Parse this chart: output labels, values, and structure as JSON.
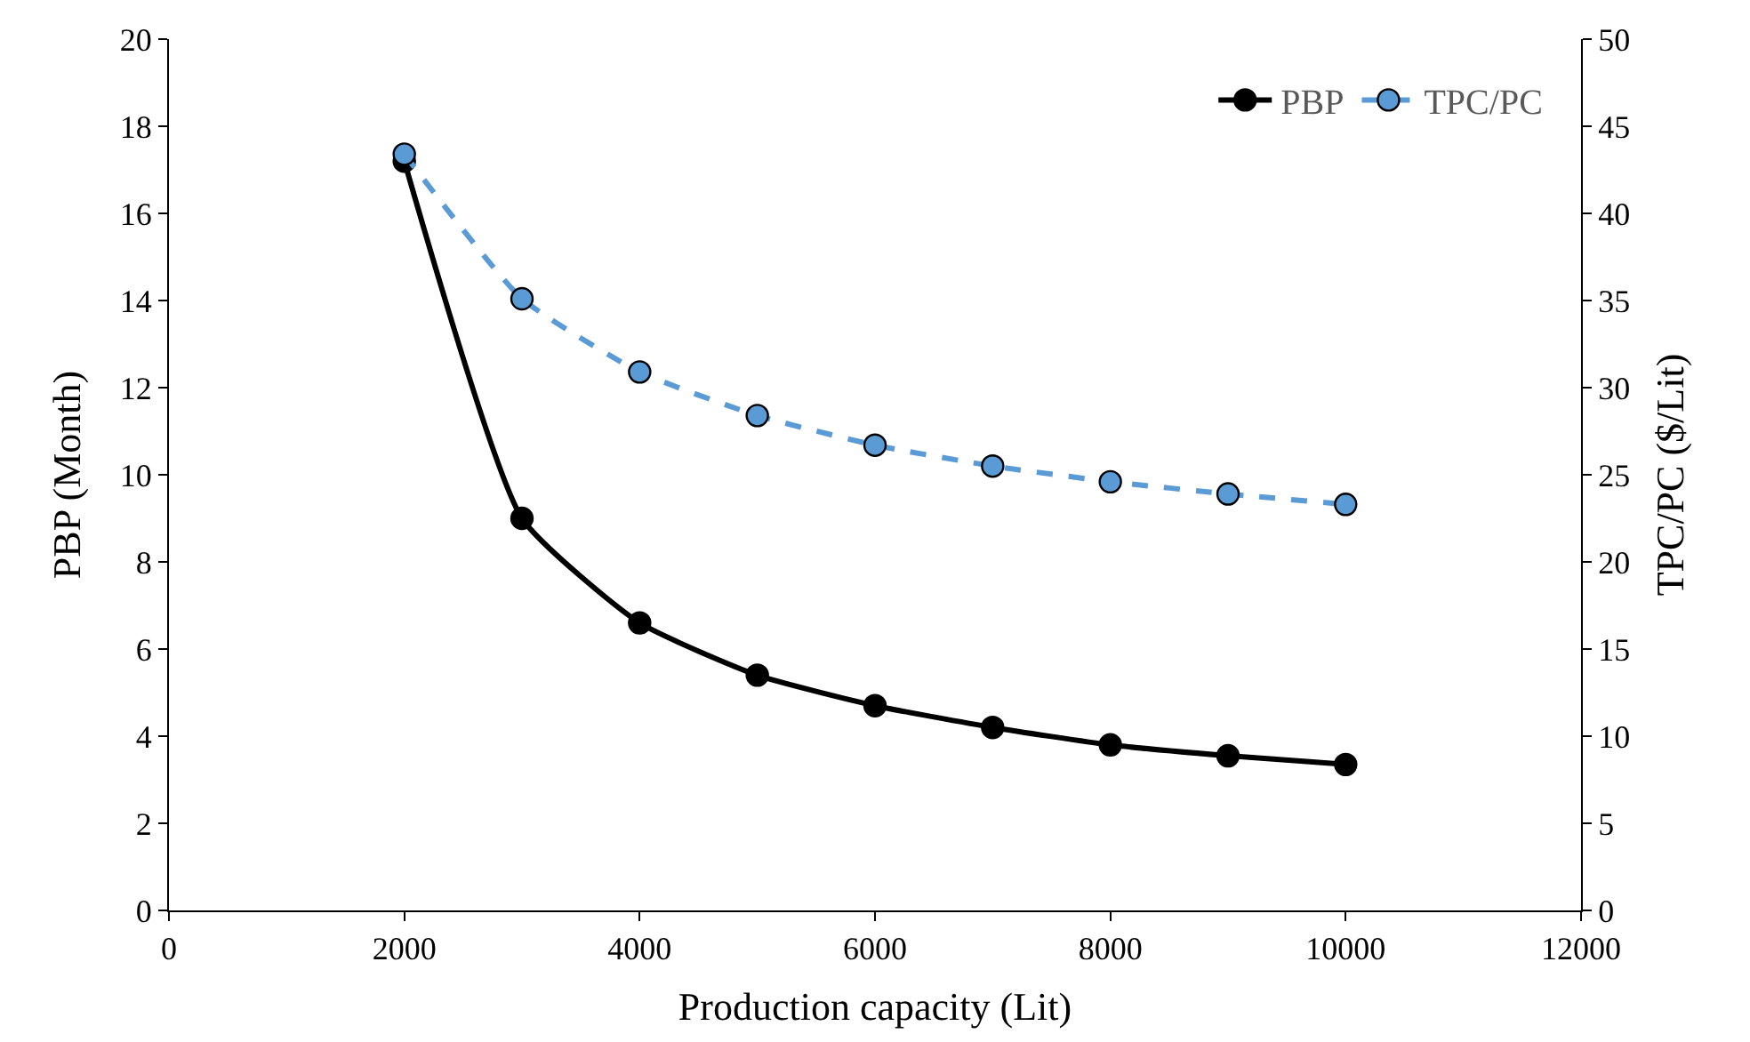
{
  "chart_data": {
    "type": "line",
    "xlabel": "Production capacity (Lit)",
    "ylabel": "PBP (Month)",
    "y2label": "TPC/PC ($/Lit)",
    "x": [
      2000,
      3000,
      4000,
      5000,
      6000,
      7000,
      8000,
      9000,
      10000
    ],
    "series": [
      {
        "name": "PBP",
        "color": "#000000",
        "values": [
          17.2,
          9.0,
          6.6,
          5.4,
          4.7,
          4.2,
          3.8,
          3.55,
          3.35
        ],
        "line_style": "solid"
      },
      {
        "name": "TPC/PC",
        "color": "#5b9bd5",
        "values": [
          43.4,
          35.1,
          30.9,
          28.4,
          26.7,
          25.5,
          24.6,
          23.9,
          23.3
        ],
        "line_style": "dashed",
        "axis": "y2"
      }
    ],
    "xlim": [
      0,
      12000
    ],
    "xticks": [
      0,
      2000,
      4000,
      6000,
      8000,
      10000,
      12000
    ],
    "ylim": [
      0,
      20
    ],
    "yticks": [
      0,
      2,
      4,
      6,
      8,
      10,
      12,
      14,
      16,
      18,
      20
    ],
    "y2lim": [
      0,
      50
    ],
    "y2ticks": [
      0,
      5,
      10,
      15,
      20,
      25,
      30,
      35,
      40,
      45,
      50
    ],
    "marker": "circle",
    "legend": "top right"
  }
}
